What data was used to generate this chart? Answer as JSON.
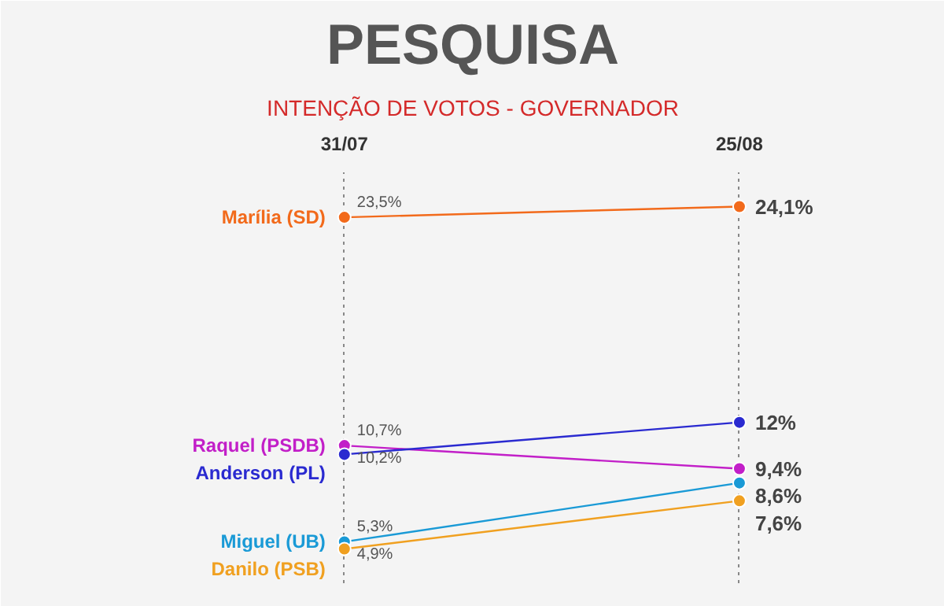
{
  "chart_data": {
    "type": "line",
    "title": "PESQUISA",
    "subtitle": "INTENÇÃO DE VOTOS - GOVERNADOR",
    "categories": [
      "31/07",
      "25/08"
    ],
    "grid": "x",
    "marker": "circle",
    "legend": false,
    "series": [
      {
        "name": "Marília (SD)",
        "color": "#f26a1b",
        "values": [
          23.5,
          24.1
        ],
        "value_labels": [
          "23,5%",
          "24,1%"
        ]
      },
      {
        "name": "Raquel (PSDB)",
        "color": "#c21fc8",
        "values": [
          10.7,
          9.4
        ],
        "value_labels": [
          "10,7%",
          "9,4%"
        ]
      },
      {
        "name": "Anderson (PL)",
        "color": "#2a2ad0",
        "values": [
          10.2,
          12
        ],
        "value_labels": [
          "10,2%",
          "12%"
        ]
      },
      {
        "name": "Miguel (UB)",
        "color": "#1a9ad6",
        "values": [
          5.3,
          8.6
        ],
        "value_labels": [
          "5,3%",
          "8,6%"
        ]
      },
      {
        "name": "Danilo (PSB)",
        "color": "#f0a020",
        "values": [
          4.9,
          7.6
        ],
        "value_labels": [
          "4,9%",
          "7,6%"
        ]
      }
    ]
  }
}
